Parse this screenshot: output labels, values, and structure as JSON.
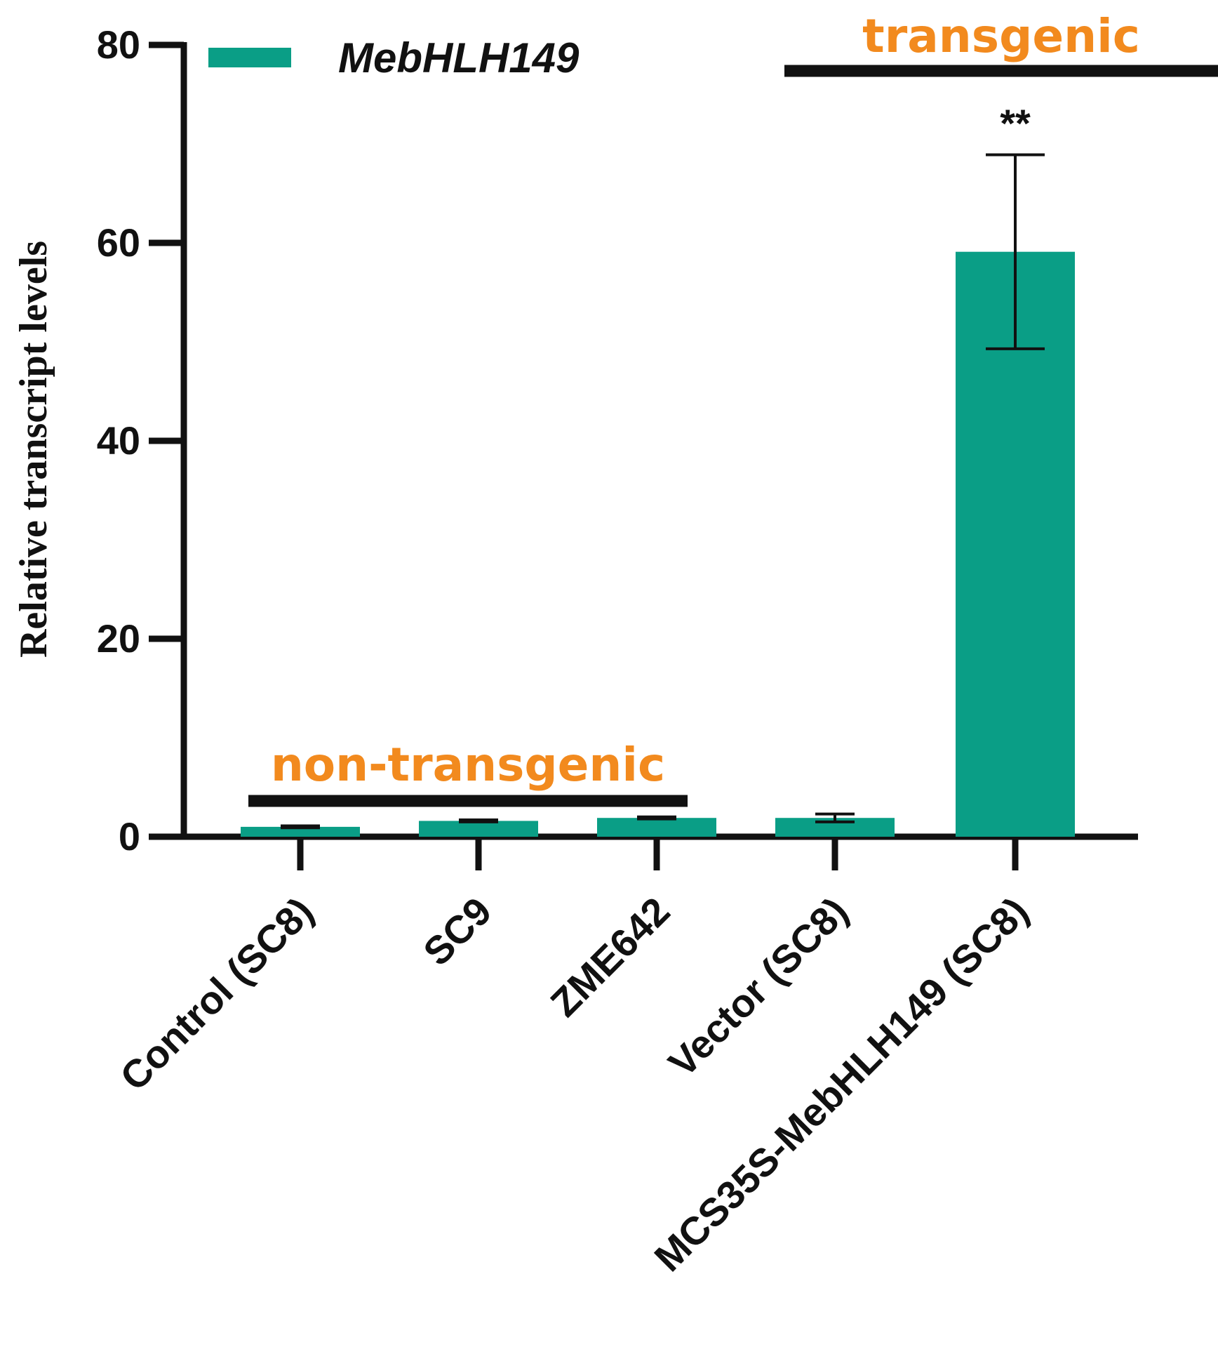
{
  "chart_data": {
    "type": "bar",
    "ylabel": "Relative transcript levels",
    "xlabel": "",
    "ylim": [
      0,
      80
    ],
    "yticks": [
      0,
      20,
      40,
      60,
      80
    ],
    "categories": [
      "Control (SC8)",
      "SC9",
      "ZME642",
      "Vector (SC8)",
      "MCS35S-MebHLH149 (SC8)"
    ],
    "series": [
      {
        "name": "MebHLH149",
        "color": "#0a9e86",
        "values": [
          1.0,
          1.6,
          1.9,
          1.9,
          59.1
        ],
        "errors": [
          0.1,
          0.1,
          0.1,
          0.4,
          9.8
        ]
      }
    ],
    "legend": {
      "position": "top-left",
      "label": "MebHLH149"
    },
    "groups": [
      {
        "label": "non-transgenic",
        "from_index": 0,
        "to_index": 2,
        "color": "#f28a1e"
      },
      {
        "label": "transgenic",
        "from_index": 3,
        "to_index": 4,
        "color": "#f28a1e"
      }
    ],
    "annotations": [
      {
        "category_index": 4,
        "text": "**"
      }
    ],
    "grid": false
  }
}
